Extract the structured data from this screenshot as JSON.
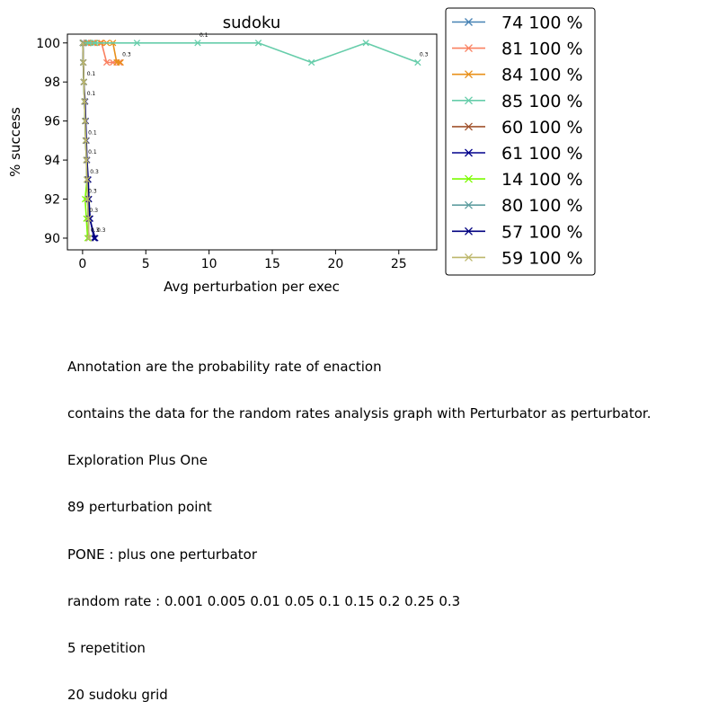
{
  "chart_data": {
    "type": "line",
    "title": "sudoku",
    "xlabel": "Avg perturbation per exec",
    "ylabel": "% success",
    "xlim": [
      -1.2,
      28
    ],
    "ylim": [
      89.4,
      100.45
    ],
    "xticks": [
      0,
      5,
      10,
      15,
      20,
      25
    ],
    "yticks": [
      90,
      92,
      94,
      96,
      98,
      100
    ],
    "grid": false,
    "legend_position": "outside-right",
    "marker": "x",
    "series": [
      {
        "name": "74 100 %",
        "color": "#4682b4",
        "points": [
          [
            0.02,
            100
          ],
          [
            0.05,
            100
          ],
          [
            0.1,
            100
          ],
          [
            0.3,
            100
          ],
          [
            0.5,
            100
          ],
          [
            0.8,
            100
          ]
        ]
      },
      {
        "name": "81 100 %",
        "color": "#fa8060",
        "points": [
          [
            0.05,
            100
          ],
          [
            0.3,
            100
          ],
          [
            0.8,
            100
          ],
          [
            1.5,
            100
          ],
          [
            1.9,
            99
          ],
          [
            2.4,
            99
          ],
          [
            2.9,
            99
          ],
          [
            3.0,
            99
          ]
        ]
      },
      {
        "name": "84 100 %",
        "color": "#e8901a",
        "points": [
          [
            0.05,
            100
          ],
          [
            0.4,
            100
          ],
          [
            0.9,
            100
          ],
          [
            1.4,
            100
          ],
          [
            1.9,
            100
          ],
          [
            2.4,
            100
          ],
          [
            2.7,
            99
          ],
          [
            3.0,
            99
          ]
        ]
      },
      {
        "name": "85 100 %",
        "color": "#66cdaa",
        "points": [
          [
            0.05,
            100
          ],
          [
            0.5,
            100
          ],
          [
            1.0,
            100
          ],
          [
            4.3,
            100
          ],
          [
            9.1,
            100
          ],
          [
            13.9,
            100
          ],
          [
            18.1,
            99
          ],
          [
            22.4,
            100
          ],
          [
            26.5,
            99
          ]
        ]
      },
      {
        "name": "60 100 %",
        "color": "#a0522d",
        "points": [
          [
            0.02,
            100
          ],
          [
            0.06,
            99
          ],
          [
            0.1,
            98
          ],
          [
            0.15,
            97
          ],
          [
            0.2,
            96
          ],
          [
            0.25,
            95
          ],
          [
            0.3,
            94
          ],
          [
            0.35,
            93
          ],
          [
            0.4,
            92
          ],
          [
            0.45,
            91
          ],
          [
            0.5,
            90
          ]
        ]
      },
      {
        "name": "61 100 %",
        "color": "#00008b",
        "points": [
          [
            0.02,
            100
          ],
          [
            0.05,
            99
          ],
          [
            0.1,
            98
          ],
          [
            0.15,
            97
          ],
          [
            0.2,
            96
          ],
          [
            0.25,
            95
          ],
          [
            0.3,
            94
          ],
          [
            0.4,
            93
          ],
          [
            0.5,
            92
          ],
          [
            0.6,
            91
          ],
          [
            0.9,
            90
          ]
        ]
      },
      {
        "name": "14 100 %",
        "color": "#7cfc00",
        "points": [
          [
            0.02,
            100
          ],
          [
            0.05,
            99
          ],
          [
            0.1,
            98
          ],
          [
            0.15,
            97
          ],
          [
            0.2,
            96
          ],
          [
            0.25,
            95
          ],
          [
            0.3,
            94
          ],
          [
            0.35,
            93
          ],
          [
            0.2,
            92
          ],
          [
            0.3,
            91
          ],
          [
            0.4,
            90
          ]
        ]
      },
      {
        "name": "80 100 %",
        "color": "#5f9ea0",
        "points": [
          [
            0.02,
            100
          ],
          [
            0.05,
            99
          ],
          [
            0.1,
            98
          ],
          [
            0.15,
            97
          ],
          [
            0.2,
            96
          ],
          [
            0.25,
            95
          ],
          [
            0.3,
            94
          ],
          [
            0.35,
            93
          ],
          [
            0.4,
            92
          ],
          [
            0.45,
            91
          ],
          [
            0.5,
            90
          ]
        ]
      },
      {
        "name": "57 100 %",
        "color": "#000080",
        "points": [
          [
            0.02,
            100
          ],
          [
            0.06,
            99
          ],
          [
            0.1,
            98
          ],
          [
            0.2,
            97
          ],
          [
            0.25,
            96
          ],
          [
            0.3,
            95
          ],
          [
            0.35,
            94
          ],
          [
            0.45,
            93
          ],
          [
            0.5,
            92
          ],
          [
            0.55,
            91
          ],
          [
            1.0,
            90
          ]
        ]
      },
      {
        "name": "59 100 %",
        "color": "#bdb76b",
        "points": [
          [
            0.02,
            100
          ],
          [
            0.06,
            99
          ],
          [
            0.1,
            98
          ],
          [
            0.15,
            97
          ],
          [
            0.2,
            96
          ],
          [
            0.25,
            95
          ],
          [
            0.3,
            94
          ],
          [
            0.35,
            93
          ],
          [
            0.4,
            92
          ],
          [
            0.45,
            91
          ],
          [
            0.5,
            90
          ]
        ]
      }
    ],
    "annotations": [
      {
        "text": "0.1",
        "x": 9.1,
        "y": 100
      },
      {
        "text": "0.3",
        "x": 26.5,
        "y": 99
      },
      {
        "text": "0.3",
        "x": 3.0,
        "y": 99
      },
      {
        "text": "0.1",
        "x": 0.2,
        "y": 98
      },
      {
        "text": "0.1",
        "x": 0.2,
        "y": 97
      },
      {
        "text": "0.1",
        "x": 0.3,
        "y": 95
      },
      {
        "text": "0.1",
        "x": 0.3,
        "y": 94
      },
      {
        "text": "0.3",
        "x": 0.45,
        "y": 93
      },
      {
        "text": "0.3",
        "x": 0.3,
        "y": 92
      },
      {
        "text": "0.3",
        "x": 0.4,
        "y": 91
      },
      {
        "text": "0.3",
        "x": 0.5,
        "y": 90
      },
      {
        "text": "0.3",
        "x": 1.0,
        "y": 90
      }
    ]
  },
  "caption": [
    "Annotation are the probability rate of enaction",
    "contains the data for the random rates analysis graph with Perturbator as perturbator.",
    "Exploration Plus One",
    "89 perturbation point",
    "PONE : plus one perturbator",
    "random rate : 0.001 0.005 0.01 0.05 0.1 0.15 0.2 0.25 0.3",
    "5 repetition",
    "20 sudoku grid"
  ]
}
